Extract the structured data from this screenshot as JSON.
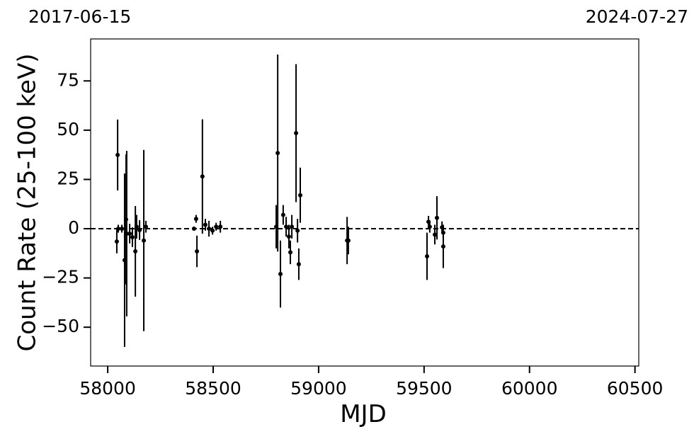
{
  "chart_data": {
    "type": "errorbar",
    "top_left_label": "2017-06-15",
    "top_right_label": "2024-07-27",
    "xlabel": "MJD",
    "ylabel": "Count Rate (25-100 keV)",
    "xlim": [
      57919,
      60518
    ],
    "ylim": [
      -69.7,
      96.3
    ],
    "xticks": [
      58000,
      58500,
      59000,
      59500,
      60000,
      60500
    ],
    "yticks": [
      {
        "value": -50,
        "label": "−50"
      },
      {
        "value": -25,
        "label": "−25"
      },
      0,
      25,
      50,
      75
    ],
    "reference_line": 0,
    "color": "#000000",
    "series": [
      {
        "name": "data",
        "color": "#000000",
        "x": [
          58043,
          58047,
          58050,
          58067,
          58080,
          58087,
          58090,
          58104,
          58117,
          58131,
          58137,
          58151,
          58171,
          58181,
          58409,
          58419,
          58423,
          58449,
          58463,
          58480,
          58497,
          58514,
          58534,
          58799,
          58806,
          58819,
          58832,
          58846,
          58859,
          58866,
          58873,
          58893,
          58900,
          58906,
          58913,
          59135,
          59141,
          59514,
          59521,
          59527,
          59551,
          59561,
          59585,
          59591,
          59591
        ],
        "values": [
          -6.5,
          37.4,
          0,
          0,
          -16,
          4.7,
          -2.5,
          -2.5,
          -4.3,
          -11.5,
          1,
          -0.7,
          -6,
          1,
          0,
          5,
          -11.5,
          26.5,
          2,
          0,
          -1,
          1,
          1,
          1,
          38.4,
          -23,
          7,
          1,
          -4,
          -12,
          1,
          48.5,
          -1,
          -18,
          17,
          -6,
          -6,
          -14,
          3.5,
          1,
          -3,
          5.5,
          0.7,
          -2,
          -9
        ],
        "errors": [
          6,
          18,
          2,
          2,
          44,
          33,
          42,
          5,
          5,
          23,
          6,
          5,
          46,
          3,
          1,
          2,
          8,
          29,
          3,
          4,
          2,
          2,
          3,
          11,
          50,
          17,
          5,
          5,
          6,
          6,
          6,
          35,
          6,
          8,
          14,
          12,
          7,
          12,
          3,
          3,
          5,
          11,
          3,
          3,
          11
        ]
      }
    ]
  }
}
